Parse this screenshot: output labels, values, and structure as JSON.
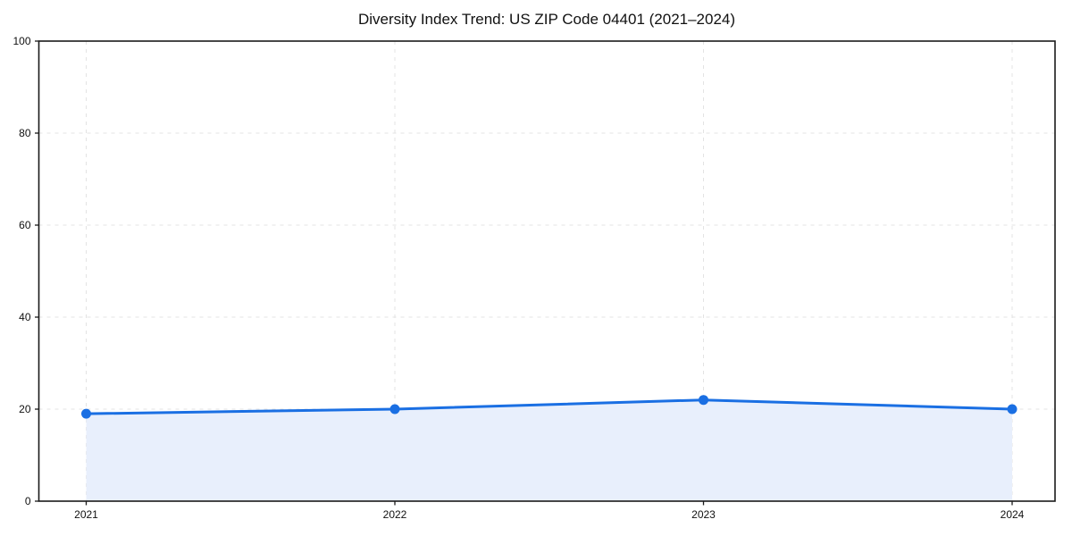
{
  "page": {
    "background": "#ffffff"
  },
  "chart_data": {
    "type": "area",
    "title": "Diversity Index Trend: US ZIP Code 04401 (2021–2024)",
    "categories": [
      "2021",
      "2022",
      "2023",
      "2024"
    ],
    "series": [
      {
        "name": "Diversity Index",
        "values": [
          19,
          20,
          22,
          20
        ]
      }
    ],
    "xlabel": "",
    "ylabel": "",
    "ylim": [
      0,
      100
    ],
    "yticks": [
      0,
      20,
      40,
      60,
      80,
      100
    ],
    "grid": true,
    "grid_style": "dashed",
    "legend": "none",
    "colors": {
      "line": "#1a6fe3",
      "marker": "#1a6fe3",
      "area_fill": "#e8effc",
      "grid": "#e3e3e3",
      "axis_frame": "#1a1a1a",
      "tick_text": "#111111"
    }
  }
}
